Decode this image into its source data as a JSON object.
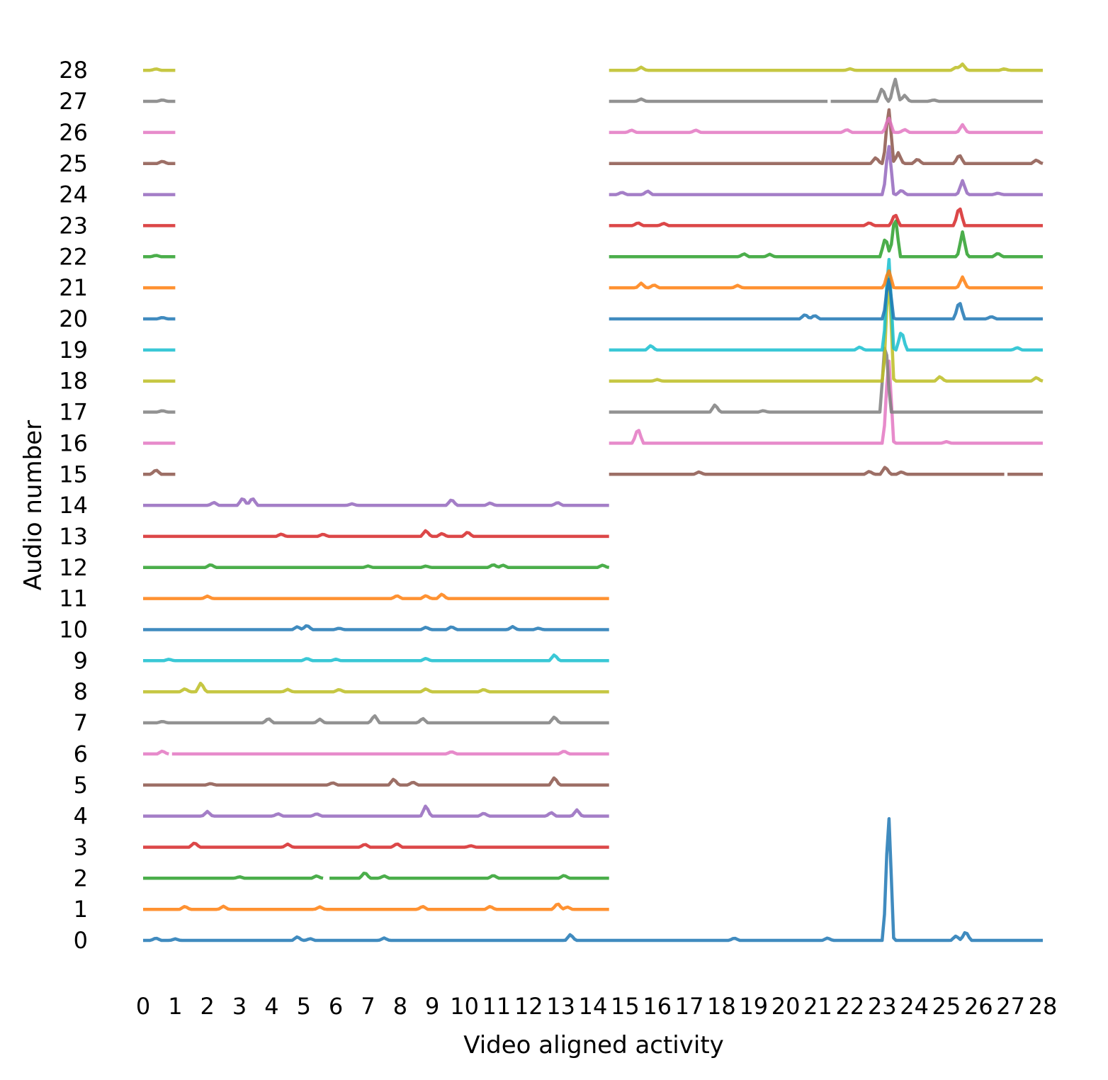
{
  "chart_data": {
    "type": "line",
    "title": "",
    "xlabel": "Video aligned activity",
    "ylabel": "Audio number",
    "xlim": [
      0,
      28
    ],
    "ylim": [
      -0.5,
      29
    ],
    "x_ticks": [
      "0",
      "1",
      "2",
      "3",
      "4",
      "5",
      "6",
      "7",
      "8",
      "9",
      "10",
      "11",
      "12",
      "13",
      "14",
      "15",
      "16",
      "17",
      "18",
      "19",
      "20",
      "21",
      "22",
      "23",
      "24",
      "25",
      "26",
      "27",
      "28"
    ],
    "y_ticks": [
      "0",
      "1",
      "2",
      "3",
      "4",
      "5",
      "6",
      "7",
      "8",
      "9",
      "10",
      "11",
      "12",
      "13",
      "14",
      "15",
      "16",
      "17",
      "18",
      "19",
      "20",
      "21",
      "22",
      "23",
      "24",
      "25",
      "26",
      "27",
      "28"
    ],
    "grid": false,
    "legend": "none",
    "palette": [
      "#1f77b4",
      "#ff7f0e",
      "#2ca02c",
      "#d62728",
      "#9467bd",
      "#8c564b",
      "#e377c2",
      "#7f7f7f",
      "#bcbd22",
      "#17becf"
    ],
    "series": [
      {
        "index": 0,
        "segments": [
          [
            0,
            28
          ]
        ],
        "peaks": [
          [
            0.4,
            0.08
          ],
          [
            1.0,
            0.05
          ],
          [
            4.8,
            0.12
          ],
          [
            5.2,
            0.06
          ],
          [
            7.5,
            0.08
          ],
          [
            13.3,
            0.2
          ],
          [
            18.4,
            0.08
          ],
          [
            21.3,
            0.08
          ],
          [
            23.2,
            4.3
          ],
          [
            25.3,
            0.15
          ],
          [
            25.6,
            0.3
          ]
        ]
      },
      {
        "index": 1,
        "segments": [
          [
            0,
            14.5
          ]
        ],
        "peaks": [
          [
            1.3,
            0.1
          ],
          [
            2.5,
            0.1
          ],
          [
            5.5,
            0.08
          ],
          [
            8.7,
            0.1
          ],
          [
            10.8,
            0.1
          ],
          [
            12.9,
            0.2
          ],
          [
            13.2,
            0.08
          ]
        ]
      },
      {
        "index": 2,
        "segments": [
          [
            0,
            5.6
          ],
          [
            5.8,
            14.5
          ]
        ],
        "peaks": [
          [
            3.0,
            0.05
          ],
          [
            5.4,
            0.08
          ],
          [
            6.9,
            0.2
          ],
          [
            7.5,
            0.08
          ],
          [
            10.9,
            0.1
          ],
          [
            13.1,
            0.1
          ]
        ]
      },
      {
        "index": 3,
        "segments": [
          [
            0,
            14.5
          ]
        ],
        "peaks": [
          [
            1.6,
            0.15
          ],
          [
            4.5,
            0.1
          ],
          [
            6.9,
            0.1
          ],
          [
            7.9,
            0.12
          ],
          [
            10.2,
            0.05
          ]
        ]
      },
      {
        "index": 4,
        "segments": [
          [
            0,
            14.5
          ]
        ],
        "peaks": [
          [
            2.0,
            0.15
          ],
          [
            4.2,
            0.08
          ],
          [
            5.4,
            0.08
          ],
          [
            8.8,
            0.35
          ],
          [
            10.6,
            0.1
          ],
          [
            12.7,
            0.12
          ],
          [
            13.5,
            0.2
          ]
        ]
      },
      {
        "index": 5,
        "segments": [
          [
            0,
            14.5
          ]
        ],
        "peaks": [
          [
            2.1,
            0.05
          ],
          [
            5.9,
            0.08
          ],
          [
            7.8,
            0.2
          ],
          [
            8.4,
            0.1
          ],
          [
            12.8,
            0.25
          ]
        ]
      },
      {
        "index": 6,
        "segments": [
          [
            0,
            0.8
          ],
          [
            0.9,
            14.5
          ]
        ],
        "peaks": [
          [
            0.6,
            0.1
          ],
          [
            9.6,
            0.08
          ],
          [
            13.1,
            0.1
          ]
        ]
      },
      {
        "index": 7,
        "segments": [
          [
            0,
            14.5
          ]
        ],
        "peaks": [
          [
            0.6,
            0.05
          ],
          [
            3.9,
            0.15
          ],
          [
            5.5,
            0.12
          ],
          [
            7.2,
            0.25
          ],
          [
            8.7,
            0.15
          ],
          [
            12.8,
            0.2
          ]
        ]
      },
      {
        "index": 8,
        "segments": [
          [
            0,
            14.5
          ]
        ],
        "peaks": [
          [
            1.3,
            0.1
          ],
          [
            1.8,
            0.3
          ],
          [
            4.5,
            0.08
          ],
          [
            6.1,
            0.08
          ],
          [
            8.8,
            0.1
          ],
          [
            10.6,
            0.08
          ]
        ]
      },
      {
        "index": 9,
        "segments": [
          [
            0,
            14.5
          ]
        ],
        "peaks": [
          [
            0.8,
            0.05
          ],
          [
            5.1,
            0.08
          ],
          [
            6.0,
            0.05
          ],
          [
            8.8,
            0.08
          ],
          [
            12.8,
            0.2
          ]
        ]
      },
      {
        "index": 10,
        "segments": [
          [
            0,
            14.5
          ]
        ],
        "peaks": [
          [
            4.8,
            0.1
          ],
          [
            5.1,
            0.15
          ],
          [
            6.1,
            0.05
          ],
          [
            8.8,
            0.08
          ],
          [
            9.6,
            0.1
          ],
          [
            11.5,
            0.1
          ],
          [
            12.3,
            0.05
          ]
        ]
      },
      {
        "index": 11,
        "segments": [
          [
            0,
            14.5
          ]
        ],
        "peaks": [
          [
            2.0,
            0.08
          ],
          [
            7.9,
            0.1
          ],
          [
            8.8,
            0.1
          ],
          [
            9.3,
            0.15
          ]
        ]
      },
      {
        "index": 12,
        "segments": [
          [
            0,
            14.5
          ]
        ],
        "peaks": [
          [
            2.1,
            0.1
          ],
          [
            7.0,
            0.05
          ],
          [
            8.8,
            0.05
          ],
          [
            10.9,
            0.1
          ],
          [
            11.2,
            0.08
          ],
          [
            14.3,
            0.08
          ]
        ]
      },
      {
        "index": 13,
        "segments": [
          [
            0,
            14.5
          ]
        ],
        "peaks": [
          [
            4.3,
            0.08
          ],
          [
            5.6,
            0.08
          ],
          [
            8.8,
            0.2
          ],
          [
            9.3,
            0.1
          ],
          [
            10.1,
            0.15
          ]
        ]
      },
      {
        "index": 14,
        "segments": [
          [
            0,
            14.5
          ]
        ],
        "peaks": [
          [
            2.2,
            0.1
          ],
          [
            3.1,
            0.25
          ],
          [
            3.4,
            0.25
          ],
          [
            6.5,
            0.05
          ],
          [
            9.6,
            0.2
          ],
          [
            10.8,
            0.08
          ],
          [
            12.9,
            0.1
          ]
        ]
      },
      {
        "index": 15,
        "segments": [
          [
            0,
            1.0
          ],
          [
            14.5,
            26.8
          ],
          [
            26.9,
            28
          ]
        ],
        "peaks": [
          [
            0.4,
            0.15
          ],
          [
            17.3,
            0.08
          ],
          [
            22.6,
            0.1
          ],
          [
            23.1,
            0.25
          ],
          [
            23.6,
            0.08
          ]
        ]
      },
      {
        "index": 16,
        "segments": [
          [
            0,
            1.0
          ],
          [
            14.5,
            28
          ]
        ],
        "peaks": [
          [
            15.4,
            0.5
          ],
          [
            23.2,
            2.9
          ],
          [
            25.0,
            0.05
          ]
        ]
      },
      {
        "index": 17,
        "segments": [
          [
            0,
            1.0
          ],
          [
            14.5,
            28
          ]
        ],
        "peaks": [
          [
            0.6,
            0.05
          ],
          [
            17.8,
            0.25
          ],
          [
            19.3,
            0.05
          ],
          [
            23.1,
            2.5
          ]
        ]
      },
      {
        "index": 18,
        "segments": [
          [
            0,
            1.0
          ],
          [
            14.5,
            28
          ]
        ],
        "peaks": [
          [
            16.0,
            0.05
          ],
          [
            23.2,
            3.7
          ],
          [
            24.8,
            0.15
          ],
          [
            27.8,
            0.12
          ]
        ]
      },
      {
        "index": 19,
        "segments": [
          [
            0,
            1.0
          ],
          [
            14.5,
            28
          ]
        ],
        "peaks": [
          [
            15.8,
            0.15
          ],
          [
            22.3,
            0.1
          ],
          [
            23.2,
            3.2
          ],
          [
            23.6,
            0.65
          ],
          [
            27.2,
            0.08
          ]
        ]
      },
      {
        "index": 20,
        "segments": [
          [
            0,
            1.0
          ],
          [
            14.5,
            28
          ]
        ],
        "peaks": [
          [
            0.6,
            0.05
          ],
          [
            20.6,
            0.15
          ],
          [
            20.9,
            0.12
          ],
          [
            23.2,
            1.4
          ],
          [
            25.4,
            0.6
          ],
          [
            26.4,
            0.08
          ]
        ]
      },
      {
        "index": 21,
        "segments": [
          [
            0,
            1.0
          ],
          [
            14.5,
            28
          ]
        ],
        "peaks": [
          [
            15.5,
            0.15
          ],
          [
            15.9,
            0.1
          ],
          [
            18.5,
            0.08
          ],
          [
            23.2,
            0.6
          ],
          [
            25.5,
            0.35
          ]
        ]
      },
      {
        "index": 22,
        "segments": [
          [
            0,
            1.0
          ],
          [
            14.5,
            28
          ]
        ],
        "peaks": [
          [
            0.4,
            0.05
          ],
          [
            18.7,
            0.1
          ],
          [
            19.5,
            0.08
          ],
          [
            23.1,
            0.65
          ],
          [
            23.4,
            1.4
          ],
          [
            25.5,
            0.8
          ],
          [
            26.6,
            0.12
          ]
        ]
      },
      {
        "index": 23,
        "segments": [
          [
            0,
            1.0
          ],
          [
            14.5,
            28
          ]
        ],
        "peaks": [
          [
            15.4,
            0.1
          ],
          [
            16.2,
            0.08
          ],
          [
            22.6,
            0.1
          ],
          [
            23.4,
            0.4
          ],
          [
            25.4,
            0.65
          ]
        ]
      },
      {
        "index": 24,
        "segments": [
          [
            0,
            1.0
          ],
          [
            14.5,
            28
          ]
        ],
        "peaks": [
          [
            14.9,
            0.08
          ],
          [
            15.7,
            0.12
          ],
          [
            23.2,
            1.7
          ],
          [
            23.6,
            0.15
          ],
          [
            25.5,
            0.45
          ],
          [
            26.6,
            0.05
          ]
        ]
      },
      {
        "index": 25,
        "segments": [
          [
            0,
            1.0
          ],
          [
            14.5,
            28
          ]
        ],
        "peaks": [
          [
            0.6,
            0.08
          ],
          [
            22.8,
            0.2
          ],
          [
            23.2,
            1.9
          ],
          [
            23.5,
            0.35
          ],
          [
            24.1,
            0.15
          ],
          [
            25.4,
            0.3
          ],
          [
            27.8,
            0.12
          ]
        ]
      },
      {
        "index": 26,
        "segments": [
          [
            0,
            1.0
          ],
          [
            14.5,
            28
          ]
        ],
        "peaks": [
          [
            15.2,
            0.08
          ],
          [
            17.2,
            0.08
          ],
          [
            21.9,
            0.1
          ],
          [
            23.2,
            0.5
          ],
          [
            23.7,
            0.1
          ],
          [
            25.5,
            0.25
          ]
        ]
      },
      {
        "index": 27,
        "segments": [
          [
            0,
            1.0
          ],
          [
            14.5,
            21.3
          ],
          [
            21.4,
            28
          ]
        ],
        "peaks": [
          [
            0.6,
            0.05
          ],
          [
            15.5,
            0.08
          ],
          [
            23.0,
            0.45
          ],
          [
            23.4,
            0.75
          ],
          [
            23.7,
            0.2
          ],
          [
            24.6,
            0.05
          ]
        ]
      },
      {
        "index": 28,
        "segments": [
          [
            0,
            1.0
          ],
          [
            14.5,
            28
          ]
        ],
        "peaks": [
          [
            0.4,
            0.05
          ],
          [
            15.5,
            0.1
          ],
          [
            22.0,
            0.05
          ],
          [
            25.3,
            0.1
          ],
          [
            25.5,
            0.2
          ],
          [
            26.8,
            0.05
          ]
        ]
      }
    ]
  }
}
